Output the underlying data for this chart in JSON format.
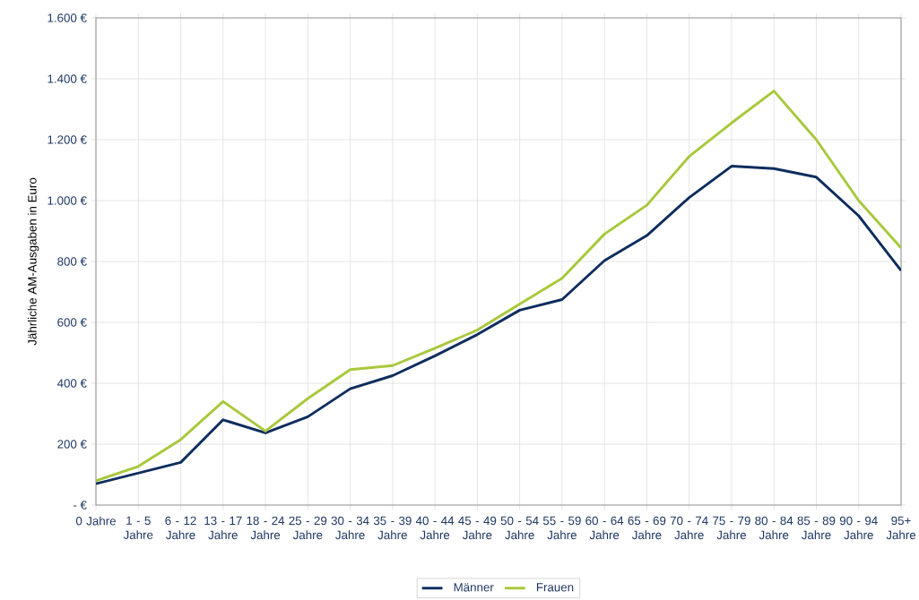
{
  "chart_data": {
    "type": "line",
    "ylabel": "Jährliche AM-Ausgaben in Euro",
    "categories": [
      "0 Jahre",
      "1 - 5 Jahre",
      "6 - 12 Jahre",
      "13 - 17 Jahre",
      "18 - 24 Jahre",
      "25 - 29 Jahre",
      "30 - 34 Jahre",
      "35 - 39 Jahre",
      "40 - 44 Jahre",
      "45 - 49 Jahre",
      "50 - 54 Jahre",
      "55 - 59 Jahre",
      "60 - 64 Jahre",
      "65 - 69 Jahre",
      "70 - 74 Jahre",
      "75 - 79 Jahre",
      "80 - 84 Jahre",
      "85 - 89 Jahre",
      "90 - 94 Jahre",
      "95+ Jahre"
    ],
    "series": [
      {
        "name": "Männer",
        "color": "#0e2d5e",
        "values": [
          70,
          105,
          140,
          280,
          237,
          290,
          382,
          425,
          490,
          560,
          640,
          675,
          803,
          885,
          1010,
          1113,
          1105,
          1077,
          950,
          770
        ]
      },
      {
        "name": "Frauen",
        "color": "#a8c83c",
        "values": [
          80,
          127,
          215,
          340,
          243,
          350,
          445,
          458,
          515,
          575,
          660,
          745,
          890,
          985,
          1145,
          1255,
          1360,
          1200,
          1000,
          845
        ]
      }
    ],
    "ylim": [
      0,
      1600
    ],
    "yticks": [
      {
        "value": 0,
        "label": "-  €"
      },
      {
        "value": 200,
        "label": "200 €"
      },
      {
        "value": 400,
        "label": "400 €"
      },
      {
        "value": 600,
        "label": "600 €"
      },
      {
        "value": 800,
        "label": "800 €"
      },
      {
        "value": 1000,
        "label": "1.000 €"
      },
      {
        "value": 1200,
        "label": "1.200 €"
      },
      {
        "value": 1400,
        "label": "1.400 €"
      },
      {
        "value": 1600,
        "label": "1.600 €"
      }
    ],
    "grid": true,
    "legend": "bottom",
    "marker": "none",
    "line_style": "solid"
  }
}
